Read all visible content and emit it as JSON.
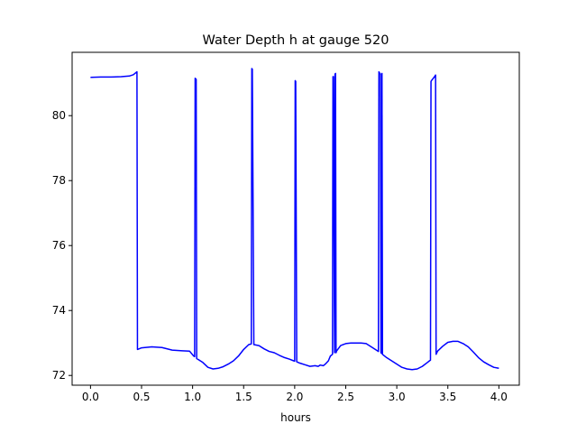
{
  "chart_data": {
    "type": "line",
    "title": "Water Depth h at gauge 520",
    "xlabel": "hours",
    "ylabel": "",
    "xlim": [
      -0.18,
      4.2
    ],
    "ylim": [
      71.7,
      81.95
    ],
    "xticks": [
      0.0,
      0.5,
      1.0,
      1.5,
      2.0,
      2.5,
      3.0,
      3.5,
      4.0
    ],
    "xtick_labels": [
      "0.0",
      "0.5",
      "1.0",
      "1.5",
      "2.0",
      "2.5",
      "3.0",
      "3.5",
      "4.0"
    ],
    "yticks": [
      72,
      74,
      76,
      78,
      80
    ],
    "ytick_labels": [
      "72",
      "74",
      "76",
      "78",
      "80"
    ],
    "grid": false,
    "series": [
      {
        "color": "#0000ff",
        "x": [
          0.0,
          0.1,
          0.2,
          0.3,
          0.38,
          0.42,
          0.455,
          0.46,
          0.5,
          0.6,
          0.7,
          0.8,
          0.9,
          0.97,
          1.01,
          1.02,
          1.025,
          1.035,
          1.04,
          1.06,
          1.1,
          1.15,
          1.2,
          1.25,
          1.3,
          1.35,
          1.4,
          1.45,
          1.5,
          1.55,
          1.575,
          1.58,
          1.585,
          1.6,
          1.65,
          1.7,
          1.75,
          1.8,
          1.85,
          1.9,
          1.95,
          1.99,
          2.0,
          2.005,
          2.01,
          2.02,
          2.05,
          2.1,
          2.15,
          2.2,
          2.23,
          2.25,
          2.28,
          2.3,
          2.33,
          2.35,
          2.37,
          2.375,
          2.38,
          2.39,
          2.395,
          2.4,
          2.405,
          2.41,
          2.45,
          2.5,
          2.55,
          2.6,
          2.65,
          2.7,
          2.75,
          2.8,
          2.82,
          2.825,
          2.83,
          2.84,
          2.845,
          2.85,
          2.855,
          2.86,
          2.9,
          2.95,
          3.0,
          3.05,
          3.1,
          3.15,
          3.2,
          3.25,
          3.3,
          3.32,
          3.33,
          3.335,
          3.34,
          3.37,
          3.38,
          3.385,
          3.4,
          3.45,
          3.5,
          3.55,
          3.6,
          3.65,
          3.7,
          3.75,
          3.8,
          3.85,
          3.9,
          3.95,
          4.0
        ],
        "y": [
          81.18,
          81.19,
          81.19,
          81.2,
          81.22,
          81.26,
          81.35,
          72.8,
          72.85,
          72.88,
          72.86,
          72.78,
          72.76,
          72.75,
          72.6,
          72.58,
          81.15,
          81.12,
          72.52,
          72.48,
          72.4,
          72.25,
          72.2,
          72.22,
          72.27,
          72.35,
          72.45,
          72.6,
          72.8,
          72.95,
          72.97,
          81.45,
          81.43,
          72.95,
          72.92,
          72.82,
          72.74,
          72.7,
          72.62,
          72.55,
          72.5,
          72.45,
          72.44,
          81.08,
          81.05,
          72.42,
          72.38,
          72.33,
          72.28,
          72.3,
          72.28,
          72.32,
          72.3,
          72.35,
          72.45,
          72.6,
          72.65,
          81.2,
          81.2,
          72.7,
          81.28,
          81.3,
          72.7,
          72.75,
          72.92,
          72.98,
          73.0,
          73.0,
          73.0,
          72.98,
          72.88,
          72.78,
          72.74,
          81.35,
          81.32,
          81.28,
          72.7,
          72.68,
          81.3,
          72.65,
          72.55,
          72.45,
          72.35,
          72.25,
          72.2,
          72.18,
          72.2,
          72.28,
          72.4,
          72.45,
          72.47,
          81.05,
          81.08,
          81.2,
          81.25,
          72.65,
          72.75,
          72.9,
          73.02,
          73.05,
          73.05,
          72.98,
          72.88,
          72.72,
          72.55,
          72.42,
          72.33,
          72.25,
          72.22
        ]
      }
    ]
  }
}
